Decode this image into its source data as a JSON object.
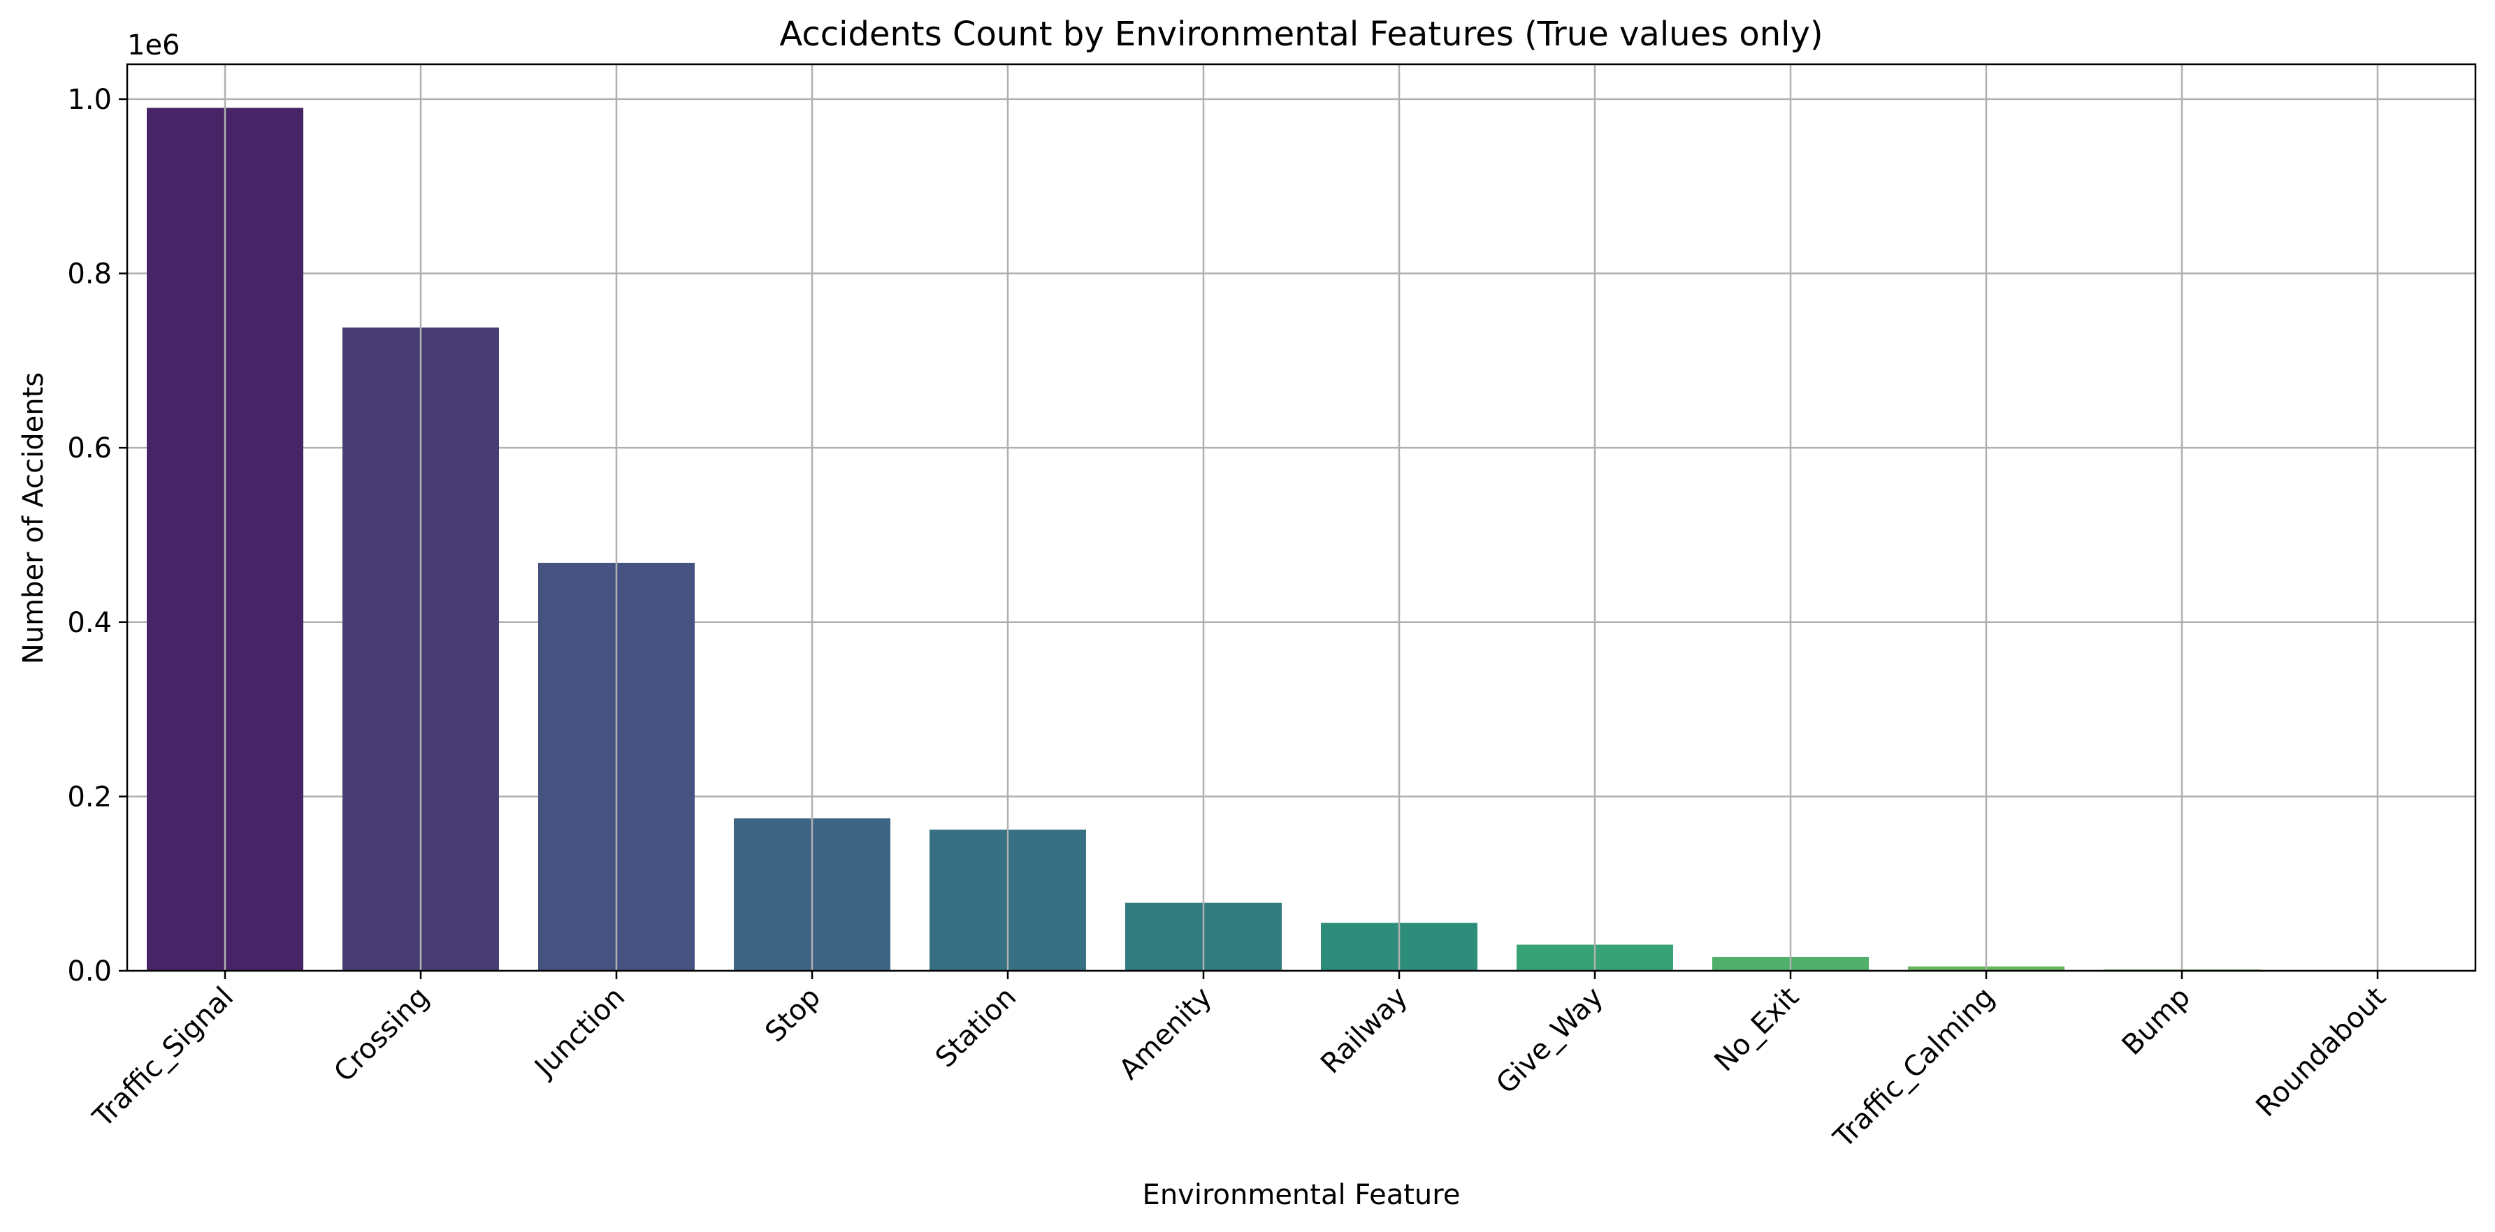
{
  "chart_data": {
    "type": "bar",
    "title": "Accidents Count by Environmental Features (True values only)",
    "xlabel": "Environmental Feature",
    "ylabel": "Number of Accidents",
    "y_offset_label": "1e6",
    "categories": [
      "Traffic_Signal",
      "Crossing",
      "Junction",
      "Stop",
      "Station",
      "Amenity",
      "Railway",
      "Give_Way",
      "No_Exit",
      "Traffic_Calming",
      "Bump",
      "Roundabout"
    ],
    "values": [
      990000,
      738000,
      468000,
      175000,
      162000,
      78000,
      55000,
      30000,
      16000,
      5000,
      1500,
      200
    ],
    "colors": [
      "#472465",
      "#483D73",
      "#465381",
      "#3E6484",
      "#377082",
      "#317C7E",
      "#2E8C7A",
      "#36A276",
      "#50AF6A",
      "#67B55C",
      "#7EBB4E",
      "#96C043"
    ],
    "ylim": [
      0,
      1040000
    ],
    "y_ticks": [
      0,
      200000,
      400000,
      600000,
      800000,
      1000000
    ],
    "y_tick_labels": [
      "0.0",
      "0.2",
      "0.4",
      "0.6",
      "0.8",
      "1.0"
    ],
    "grid": true,
    "x_tick_rotation": 45
  }
}
